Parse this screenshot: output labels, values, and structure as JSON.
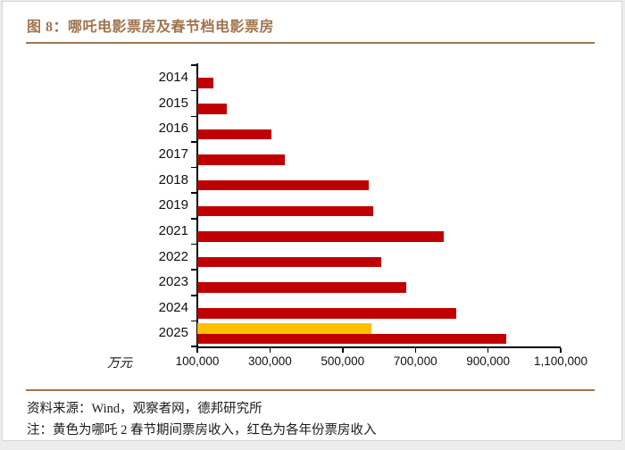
{
  "figure": {
    "panel_background": "#ffffff",
    "page_background": "#ececec",
    "accent_color": "#a0744e"
  },
  "chart_data": {
    "type": "bar",
    "orientation": "horizontal",
    "title": "图 8：哪吒电影票房及春节档电影票房",
    "unit_label": "万元",
    "categories": [
      "2014",
      "2015",
      "2016",
      "2017",
      "2018",
      "2019",
      "2021",
      "2022",
      "2023",
      "2024",
      "2025"
    ],
    "series": [
      {
        "name": "各年份票房收入（红色）",
        "color": "#C00000",
        "values": [
          145000,
          180000,
          305000,
          340000,
          572000,
          583000,
          778000,
          605000,
          675000,
          812000,
          950000
        ]
      },
      {
        "name": "哪吒2春节期间票房收入（黄色）",
        "color": "#FFC000",
        "values": [
          null,
          null,
          null,
          null,
          null,
          null,
          null,
          null,
          null,
          null,
          578000
        ]
      }
    ],
    "x_axis": {
      "min": 100000,
      "max": 1100000,
      "tick_interval": 200000,
      "tick_labels": [
        "100,000",
        "300,000",
        "500,000",
        "700,000",
        "900,000",
        "1,100,000"
      ]
    },
    "grid": false,
    "legend_position": "none"
  },
  "footer": {
    "source": "资料来源：Wind，观察者网，德邦研究所",
    "note": "注：黄色为哪吒 2 春节期间票房收入，红色为各年份票房收入"
  }
}
